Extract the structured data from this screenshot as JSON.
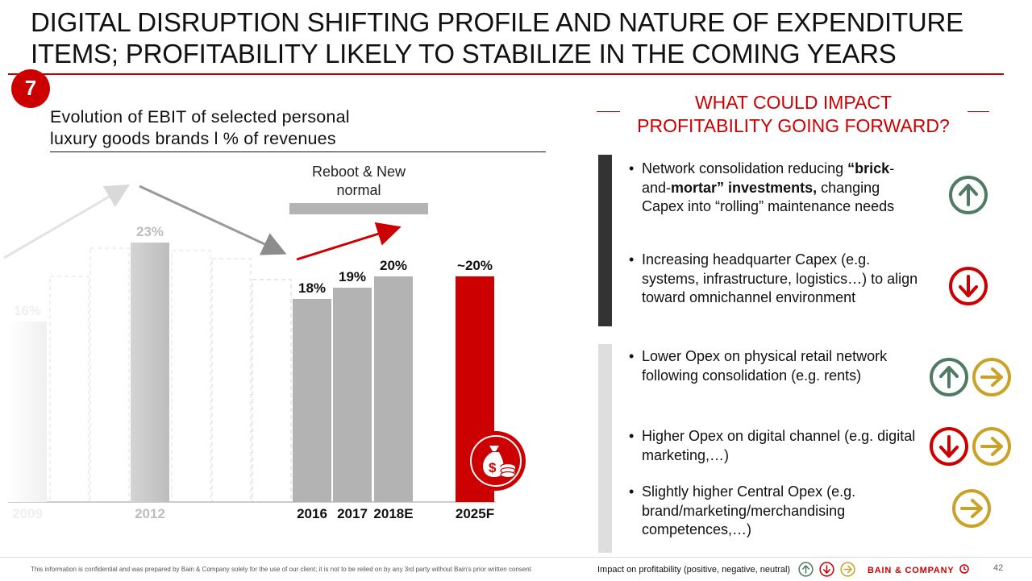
{
  "slide": {
    "title": "DIGITAL DISRUPTION SHIFTING PROFILE AND NATURE OF EXPENDITURE ITEMS; PROFITABILITY LIKELY TO STABILIZE IN THE COMING YEARS",
    "badge": "7",
    "page_number": "42"
  },
  "left": {
    "subtitle_line1": "Evolution of EBIT of selected personal",
    "subtitle_line2": "luxury goods brands l % of revenues",
    "annotation_line1": "Reboot & New",
    "annotation_line2": "normal"
  },
  "chart_data": {
    "type": "bar",
    "title": "Evolution of EBIT of selected personal luxury goods brands l % of revenues",
    "categories": [
      "2009",
      "2012",
      "2016",
      "2017",
      "2018E",
      "2025F"
    ],
    "values": [
      16,
      23,
      18,
      19,
      20,
      20
    ],
    "labels": [
      "16%",
      "23%",
      "18%",
      "19%",
      "20%",
      "~20%"
    ],
    "ylim": [
      0,
      25
    ],
    "grid": false,
    "colors": {
      "faded": "#f0f0f0",
      "history": "#c6c6c6",
      "recent": "#b3b3b3",
      "forecast": "#cc0000"
    }
  },
  "right": {
    "heading_line1": "WHAT COULD IMPACT",
    "heading_line2": "PROFITABILITY GOING FORWARD?",
    "bullets": [
      {
        "line1_pre": "Network consolidation reducing",
        "bold1": "“brick",
        "mid1": "-and-",
        "bold2": "mortar” investments,",
        "rest": "changing Capex into “rolling” maintenance needs"
      },
      {
        "text": "Increasing headquarter Capex (e.g. systems, infrastructure, logistics…) to align toward omnichannel environment"
      },
      {
        "text": "Lower Opex on physical retail network following consolidation (e.g. rents)"
      },
      {
        "text": "Higher Opex on digital channel (e.g. digital marketing,…)"
      },
      {
        "text": "Slightly higher Central Opex (e.g. brand/marketing/merchandising competences,…)"
      }
    ],
    "impact_icons": [
      [
        "arrow-up-icon"
      ],
      [
        "arrow-down-icon"
      ],
      [
        "arrow-up-icon",
        "arrow-right-icon"
      ],
      [
        "arrow-down-icon",
        "arrow-right-icon"
      ],
      [
        "arrow-right-icon"
      ]
    ]
  },
  "footer": {
    "disclaimer": "This information is confidential and was prepared by Bain & Company solely for the use of our client; it is not to be relied on by any 3rd party without Bain's prior written consent",
    "legend": "Impact on profitability (positive, negative, neutral)",
    "brand": "BAIN & COMPANY"
  },
  "colors": {
    "accent": "#cc0000",
    "positive": "#4f7a64",
    "negative": "#cc0000",
    "neutral": "#c9a227"
  }
}
